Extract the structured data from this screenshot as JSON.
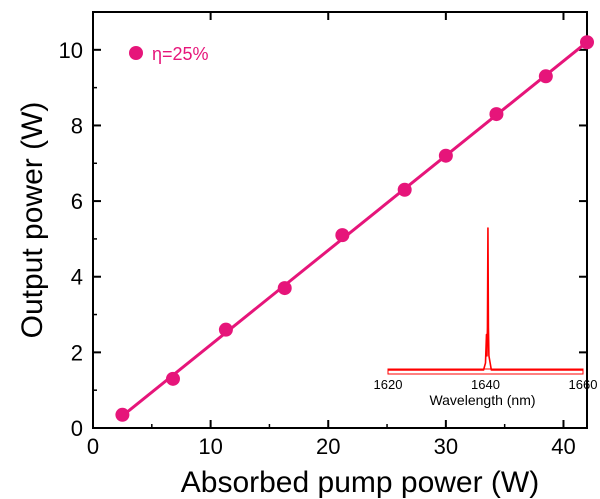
{
  "chart_data": [
    {
      "type": "scatter",
      "xlabel": "Absorbed pump power (W)",
      "ylabel": "Output power (W)",
      "xlim": [
        0,
        42
      ],
      "ylim": [
        0,
        11
      ],
      "x_ticks": [
        "0",
        "10",
        "20",
        "30",
        "40"
      ],
      "y_ticks": [
        "0",
        "2",
        "4",
        "6",
        "8",
        "10"
      ],
      "grid": false,
      "legend_position": "top-left",
      "series": [
        {
          "name": "η=25%",
          "color": "#e6157a",
          "marker": "circle",
          "fit_line": true,
          "x": [
            2.5,
            6.8,
            11.3,
            16.3,
            21.2,
            26.5,
            30.0,
            34.3,
            38.5,
            42.0
          ],
          "y": [
            0.35,
            1.3,
            2.6,
            3.7,
            5.1,
            6.3,
            7.2,
            8.3,
            9.3,
            10.2
          ]
        }
      ]
    },
    {
      "type": "line",
      "inset": true,
      "xlabel": "Wavelength (nm)",
      "xlim": [
        1620,
        1660
      ],
      "x_ticks": [
        "1620",
        "1640",
        "1660"
      ],
      "series": [
        {
          "color": "#ff0000",
          "peak_wavelength": 1640.5,
          "x": [
            1620,
            1639.6,
            1640.0,
            1640.2,
            1640.3,
            1640.4,
            1640.5,
            1640.6,
            1640.7,
            1640.9,
            1641.2,
            1660
          ],
          "y": [
            0.0,
            0.0,
            0.05,
            0.25,
            0.1,
            0.3,
            1.0,
            0.3,
            0.1,
            0.06,
            0.0,
            0.0
          ]
        }
      ]
    }
  ]
}
